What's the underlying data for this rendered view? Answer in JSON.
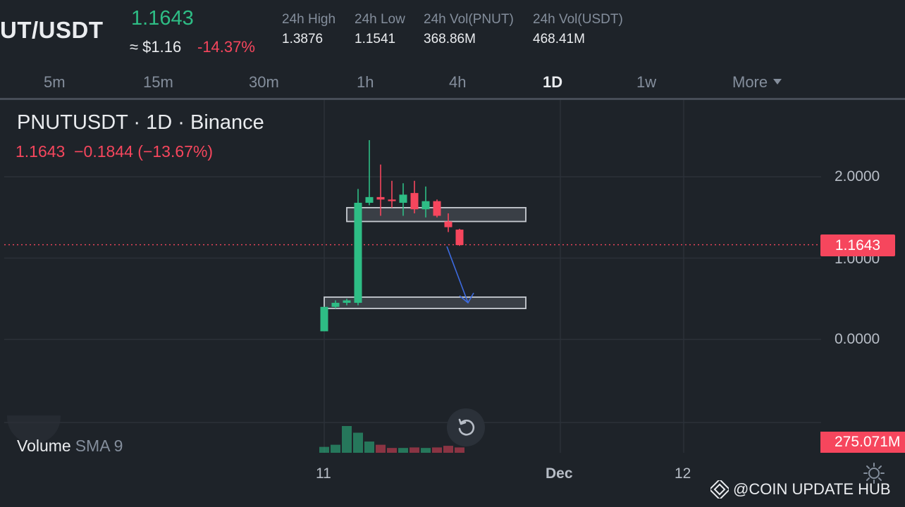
{
  "header": {
    "pair": "UT/USDT",
    "price": "1.1643",
    "approx_usd": "≈ $1.16",
    "change_pct": "-14.37%",
    "stats": [
      {
        "label": "24h High",
        "value": "1.3876"
      },
      {
        "label": "24h Low",
        "value": "1.1541"
      },
      {
        "label": "24h Vol(PNUT)",
        "value": "368.86M"
      },
      {
        "label": "24h Vol(USDT)",
        "value": "468.41M"
      }
    ]
  },
  "timeframes": {
    "tabs": [
      "5m",
      "15m",
      "30m",
      "1h",
      "4h",
      "1D",
      "1w"
    ],
    "active": "1D",
    "more_label": "More"
  },
  "chart": {
    "title": "PNUTUSDT · 1D · Binance",
    "ohlc_line": "1.1643  −0.1844 (−13.67%)",
    "current_price_tag": "1.1643",
    "volume_tag": "275.071M",
    "volume_legend": "Volume",
    "volume_sma": "SMA 9",
    "y_ticks": [
      "2.0000",
      "1.0000",
      "0.0000"
    ],
    "x_ticks": [
      "11",
      "Dec",
      "12"
    ]
  },
  "chart_data": {
    "type": "candlestick",
    "ylim": [
      -0.55,
      2.55
    ],
    "y_ticks": [
      0,
      1,
      2
    ],
    "candles": [
      {
        "o": 0.1,
        "h": 0.4,
        "l": 0.1,
        "c": 0.4
      },
      {
        "o": 0.4,
        "h": 0.48,
        "l": 0.38,
        "c": 0.45
      },
      {
        "o": 0.45,
        "h": 0.5,
        "l": 0.42,
        "c": 0.48
      },
      {
        "o": 0.45,
        "h": 1.85,
        "l": 0.42,
        "c": 1.68
      },
      {
        "o": 1.68,
        "h": 2.45,
        "l": 1.65,
        "c": 1.75
      },
      {
        "o": 1.75,
        "h": 2.15,
        "l": 1.52,
        "c": 1.72
      },
      {
        "o": 1.72,
        "h": 1.95,
        "l": 1.62,
        "c": 1.7
      },
      {
        "o": 1.68,
        "h": 1.92,
        "l": 1.52,
        "c": 1.78
      },
      {
        "o": 1.8,
        "h": 1.95,
        "l": 1.55,
        "c": 1.6
      },
      {
        "o": 1.6,
        "h": 1.88,
        "l": 1.5,
        "c": 1.7
      },
      {
        "o": 1.7,
        "h": 1.72,
        "l": 1.5,
        "c": 1.52
      },
      {
        "o": 1.45,
        "h": 1.55,
        "l": 1.32,
        "c": 1.38
      },
      {
        "o": 1.35,
        "h": 1.36,
        "l": 1.15,
        "c": 1.16
      }
    ],
    "volume_relative": [
      0.22,
      0.3,
      1.0,
      0.75,
      0.42,
      0.3,
      0.18,
      0.18,
      0.2,
      0.18,
      0.2,
      0.26,
      0.2
    ],
    "zones": [
      {
        "y_top": 1.62,
        "y_bottom": 1.45
      },
      {
        "y_top": 0.52,
        "y_bottom": 0.38
      }
    ],
    "current_price": 1.1643
  },
  "footer": {
    "watermark": "@COIN UPDATE HUB"
  },
  "colors": {
    "up": "#2ebd85",
    "down": "#f6465d",
    "background": "#1e2329",
    "grid": "#2b3139",
    "arrow": "#3d6be0"
  }
}
